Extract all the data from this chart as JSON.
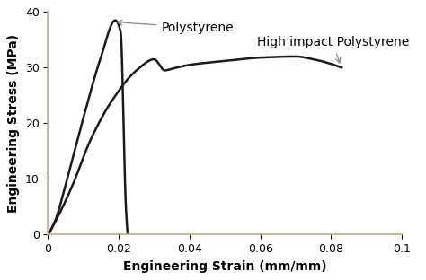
{
  "title": "",
  "xlabel": "Engineering Strain (mm/mm)",
  "ylabel": "Engineering Stress (MPa)",
  "xlim": [
    0,
    0.1
  ],
  "ylim": [
    0,
    40
  ],
  "xticks": [
    0,
    0.02,
    0.04,
    0.06,
    0.08,
    0.1
  ],
  "xtick_labels": [
    "0",
    "0.02",
    "0.04",
    "0.06",
    "0.08",
    "0.1"
  ],
  "yticks": [
    0,
    10,
    20,
    30,
    40
  ],
  "curve1_label": "Polystyrene",
  "curve2_label": "High impact Polystyrene",
  "line_color": "#1a1a1a",
  "bg_color": "#ffffff",
  "label_fontsize": 10,
  "tick_fontsize": 9,
  "annotation_fontsize": 10,
  "ps_keypoints_x": [
    0.0,
    0.002,
    0.005,
    0.01,
    0.015,
    0.019,
    0.0205,
    0.022,
    0.0225
  ],
  "ps_keypoints_y": [
    0.0,
    2.5,
    9.0,
    21.0,
    32.0,
    38.5,
    36.5,
    5.0,
    0.0
  ],
  "hips_keypoints_x": [
    0.0,
    0.003,
    0.007,
    0.012,
    0.018,
    0.025,
    0.03,
    0.033,
    0.035,
    0.04,
    0.05,
    0.06,
    0.07,
    0.075,
    0.083
  ],
  "hips_keypoints_y": [
    0.0,
    3.5,
    9.0,
    17.0,
    24.0,
    29.5,
    31.5,
    29.5,
    29.8,
    30.5,
    31.2,
    31.8,
    32.0,
    31.5,
    30.0
  ]
}
